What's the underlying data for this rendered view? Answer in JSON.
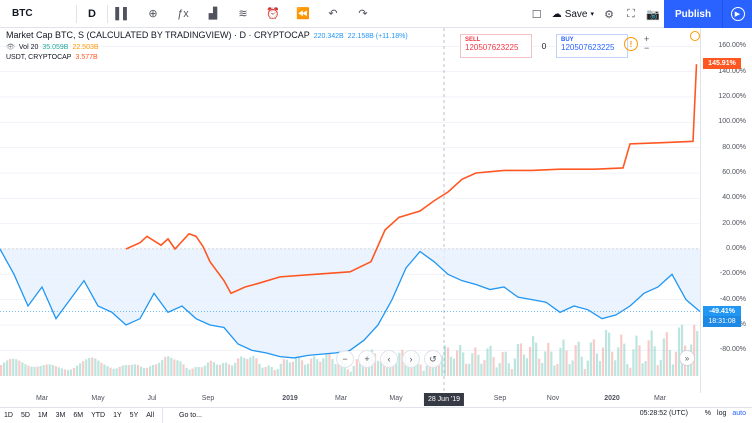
{
  "toolbar": {
    "symbol": "BTC",
    "interval": "D",
    "buttons": [
      {
        "name": "bar-style-icon",
        "glyph": "▌▌"
      },
      {
        "name": "compare-icon",
        "glyph": "⊕"
      },
      {
        "name": "indicators-icon",
        "glyph": "ƒx"
      },
      {
        "name": "financials-icon",
        "glyph": "▟"
      },
      {
        "name": "templates-icon",
        "glyph": "≋"
      },
      {
        "name": "alert-icon",
        "glyph": "⏰"
      },
      {
        "name": "replay-icon",
        "glyph": "⏪"
      },
      {
        "name": "undo-icon",
        "glyph": "↶"
      },
      {
        "name": "redo-icon",
        "glyph": "↷"
      }
    ],
    "save_label": "Save",
    "publish_label": "Publish"
  },
  "legend": {
    "title": "Market Cap BTC, S (CALCULATED BY TRADINGVIEW) · D · CRYPTOCAP",
    "title_value": "220.342B",
    "title_change": "22.158B (+11.18%)",
    "volume_label": "Vol 20",
    "volume_value_1": "35.059B",
    "volume_value_2": "22.503B",
    "usdt_label": "USDT, CRYPTOCAP",
    "usdt_value": "3.577B"
  },
  "trade": {
    "sell_label": "SELL",
    "sell_value": "120507623225",
    "qty": "0",
    "buy_label": "BUY",
    "buy_value": "120507623225"
  },
  "price_axis": {
    "labels": [
      "160.00%",
      "140.00%",
      "120.00%",
      "100.00%",
      "80.00%",
      "60.00%",
      "40.00%",
      "20.00%",
      "0.00%",
      "-20.00%",
      "-40.00%",
      "-60.00%",
      "-80.00%"
    ],
    "usdt_tag": "145.91%",
    "btc_tag": "-49.41%",
    "btc_time_tag": "18:31:08"
  },
  "time_axis": {
    "labels": [
      "Mar",
      "May",
      "Jul",
      "Sep",
      "2019",
      "Mar",
      "May",
      "Sep",
      "Nov",
      "2020",
      "Mar"
    ],
    "cursor": "28 Jun '19"
  },
  "bottom": {
    "ranges": [
      "1D",
      "5D",
      "1M",
      "3M",
      "6M",
      "YTD",
      "1Y",
      "5Y",
      "All"
    ],
    "goto": "Go to...",
    "utc": "05:28:52 (UTC)",
    "pct": "%",
    "log": "log",
    "auto": "auto"
  },
  "colors": {
    "usdt": "#ff5722",
    "btc": "#2196f3",
    "btc_fill": "#e3f0fd",
    "sell": "#f23645",
    "buy": "#2962ff",
    "volume_up": "#8fd3c9",
    "volume_down": "#f3a9a4"
  },
  "chart_data": {
    "type": "line",
    "title": "Market Cap BTC, S (CALCULATED BY TRADINGVIEW) · D · CRYPTOCAP",
    "ylabel": "",
    "ylim": [
      -90,
      165
    ],
    "series": [
      {
        "name": "USDT, CRYPTOCAP",
        "x_frac": [
          0.18,
          0.2,
          0.21,
          0.23,
          0.24,
          0.25,
          0.27,
          0.28,
          0.29,
          0.3,
          0.32,
          0.33,
          0.35,
          0.37,
          0.4,
          0.45,
          0.5,
          0.53,
          0.55,
          0.57,
          0.6,
          0.62,
          0.64,
          0.66,
          0.68,
          0.72,
          0.76,
          0.8,
          0.85,
          0.89,
          0.9,
          0.95,
          0.99,
          0.995
        ],
        "values": [
          0,
          5,
          10,
          3,
          8,
          0,
          12,
          10,
          2,
          -10,
          -25,
          -35,
          -30,
          -27,
          -22,
          -20,
          -18,
          -10,
          15,
          25,
          30,
          38,
          45,
          55,
          60,
          62,
          62,
          63,
          63,
          64,
          83,
          84,
          85,
          145.91
        ]
      },
      {
        "name": "Market Cap BTC",
        "x_frac": [
          0.0,
          0.02,
          0.04,
          0.06,
          0.08,
          0.1,
          0.12,
          0.14,
          0.16,
          0.18,
          0.2,
          0.22,
          0.24,
          0.26,
          0.28,
          0.3,
          0.32,
          0.34,
          0.36,
          0.38,
          0.4,
          0.42,
          0.44,
          0.46,
          0.48,
          0.5,
          0.52,
          0.54,
          0.56,
          0.58,
          0.6,
          0.62,
          0.64,
          0.66,
          0.68,
          0.7,
          0.72,
          0.74,
          0.76,
          0.78,
          0.8,
          0.82,
          0.84,
          0.86,
          0.88,
          0.9,
          0.92,
          0.94,
          0.96,
          0.98,
          1.0
        ],
        "values": [
          0,
          -20,
          -45,
          -30,
          -55,
          -40,
          -25,
          -45,
          -50,
          -60,
          -55,
          -35,
          -50,
          -45,
          -55,
          -60,
          -62,
          -75,
          -80,
          -82,
          -85,
          -86,
          -84,
          -83,
          -82,
          -80,
          -72,
          -60,
          -40,
          -15,
          -2,
          -10,
          -20,
          -25,
          -28,
          -32,
          -30,
          -38,
          -40,
          -42,
          -50,
          -45,
          -48,
          -55,
          -52,
          -45,
          -35,
          -30,
          -20,
          -40,
          -49.41
        ]
      }
    ]
  }
}
